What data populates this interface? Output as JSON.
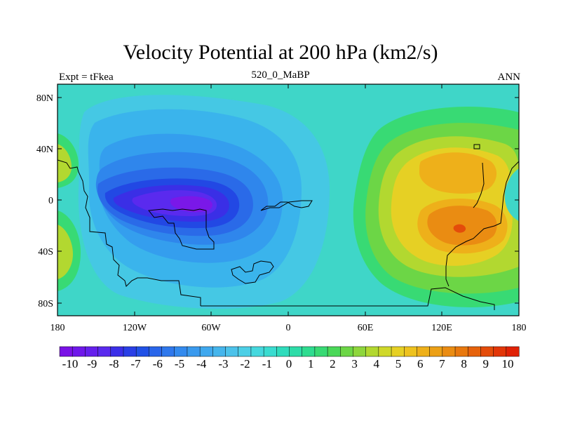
{
  "title": "Velocity Potential at 200 hPa (km2/s)",
  "subtitle_left": "Expt = tFkea",
  "subtitle_center": "520_0_MaBP",
  "subtitle_right": "ANN",
  "x_ticks": [
    "180",
    "120W",
    "60W",
    "0",
    "60E",
    "120E",
    "180"
  ],
  "y_ticks": [
    "80N",
    "40N",
    "0",
    "40S",
    "80S"
  ],
  "colorbar_labels": [
    "-10",
    "-9",
    "-8",
    "-7",
    "-6",
    "-5",
    "-4",
    "-3",
    "-2",
    "-1",
    "0",
    "1",
    "2",
    "3",
    "4",
    "5",
    "6",
    "7",
    "8",
    "9",
    "10"
  ],
  "colorbar_colors": [
    "#7a12e6",
    "#6f18ea",
    "#6520ec",
    "#5a2aee",
    "#3b2fe8",
    "#2a3fe6",
    "#2151e6",
    "#2a66ea",
    "#2f78ec",
    "#338aee",
    "#3a9aee",
    "#3fa8ee",
    "#45b5ec",
    "#4cc2ea",
    "#4ccfe6",
    "#45d8de",
    "#3adcd0",
    "#2fdcbc",
    "#2edca8",
    "#2fdc90",
    "#38da74",
    "#4ad858",
    "#6cd646",
    "#8ed63c",
    "#b2d830",
    "#cfd82a",
    "#e6d024",
    "#eec21e",
    "#eeb01a",
    "#eca016",
    "#ea8c12",
    "#e8780e",
    "#e6620c",
    "#e44c0a",
    "#e23608",
    "#e02206"
  ],
  "chart_data": {
    "type": "heatmap",
    "title": "Velocity Potential at 200 hPa (km2/s)",
    "xlabel": "",
    "ylabel": "",
    "xlim": [
      -180,
      180
    ],
    "ylim": [
      -90,
      90
    ],
    "x_ticks": [
      -180,
      -120,
      -60,
      0,
      60,
      120,
      180
    ],
    "y_ticks": [
      80,
      40,
      0,
      -40,
      -80
    ],
    "color_scale": [
      -10,
      10
    ],
    "extrema": [
      {
        "lon": -95,
        "lat": 3,
        "value": -10
      },
      {
        "lon": 130,
        "lat": -20,
        "value": 9
      },
      {
        "lon": 125,
        "lat": 18,
        "value": 7
      },
      {
        "lon": -165,
        "lat": 25,
        "value": 3
      },
      {
        "lon": -170,
        "lat": -35,
        "value": 3
      }
    ]
  }
}
